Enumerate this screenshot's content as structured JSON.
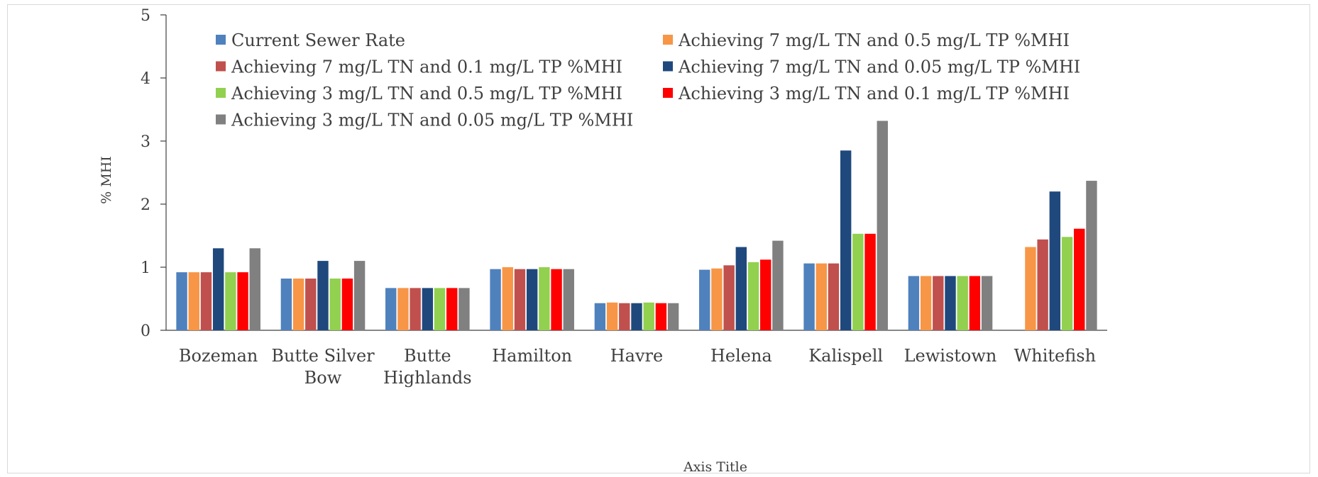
{
  "chart_data": {
    "type": "bar",
    "title": "",
    "xlabel": "Axis Title",
    "ylabel": "% MHI",
    "ylim": [
      0,
      5
    ],
    "yticks": [
      0,
      1,
      2,
      3,
      4,
      5
    ],
    "grid": false,
    "legend_position": "top",
    "categories": [
      [
        "Bozeman"
      ],
      [
        "Butte Silver",
        "Bow"
      ],
      [
        "Butte",
        "Highlands"
      ],
      [
        "Hamilton"
      ],
      [
        "Havre"
      ],
      [
        "Helena"
      ],
      [
        "Kalispell"
      ],
      [
        "Lewistown"
      ],
      [
        "Whitefish"
      ]
    ],
    "series": [
      {
        "name": "Current Sewer Rate",
        "color": "#4F81BD",
        "values": [
          0.92,
          0.82,
          0.67,
          0.97,
          0.43,
          0.96,
          1.06,
          0.86,
          null
        ]
      },
      {
        "name": "Achieving 7 mg/L TN and 0.5 mg/L TP %MHI",
        "color": "#F79646",
        "values": [
          0.92,
          0.82,
          0.67,
          1.0,
          0.44,
          0.98,
          1.06,
          0.86,
          1.32
        ]
      },
      {
        "name": "Achieving 7 mg/L TN and 0.1 mg/L TP %MHI",
        "color": "#C0504D",
        "values": [
          0.92,
          0.82,
          0.67,
          0.97,
          0.43,
          1.03,
          1.06,
          0.86,
          1.44
        ]
      },
      {
        "name": "Achieving 7 mg/L TN and 0.05 mg/L TP %MHI",
        "color": "#1F497D",
        "values": [
          1.3,
          1.1,
          0.67,
          0.97,
          0.43,
          1.32,
          2.85,
          0.86,
          2.2
        ]
      },
      {
        "name": "Achieving 3 mg/L TN and 0.5 mg/L TP %MHI",
        "color": "#92D050",
        "values": [
          0.92,
          0.82,
          0.67,
          1.0,
          0.44,
          1.08,
          1.53,
          0.86,
          1.48
        ]
      },
      {
        "name": "Achieving 3 mg/L TN and 0.1 mg/L TP %MHI",
        "color": "#FF0000",
        "values": [
          0.92,
          0.82,
          0.67,
          0.97,
          0.43,
          1.12,
          1.53,
          0.86,
          1.61
        ]
      },
      {
        "name": "Achieving 3 mg/L TN and 0.05 mg/L TP %MHI",
        "color": "#808080",
        "values": [
          1.3,
          1.1,
          0.67,
          0.97,
          0.43,
          1.42,
          3.32,
          0.86,
          2.37
        ]
      }
    ]
  }
}
